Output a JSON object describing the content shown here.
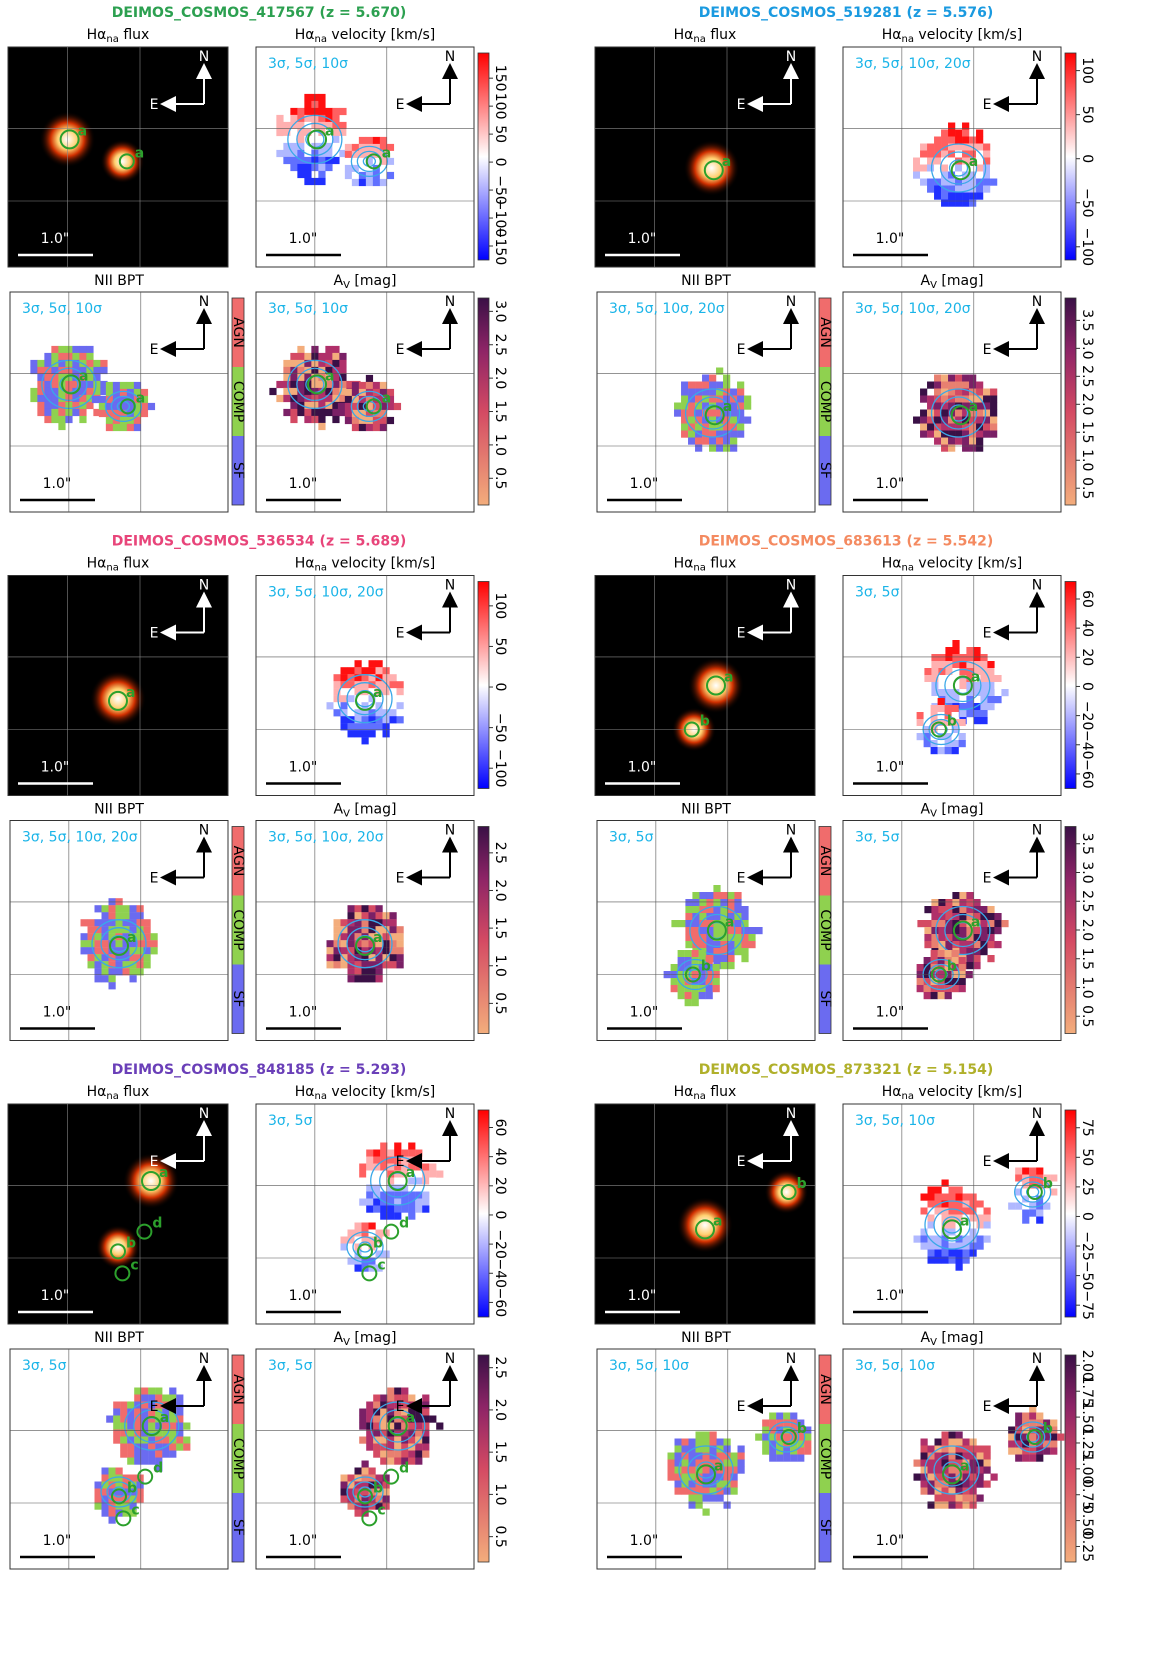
{
  "panel_titles": {
    "flux": {
      "main": "Hα",
      "sub": "na",
      "rest": " flux"
    },
    "velocity": {
      "main": "Hα",
      "sub": "na",
      "rest": " velocity [km/s]"
    },
    "bpt": "NII BPT",
    "av": {
      "main": "A",
      "sub": "V",
      "rest": " [mag]"
    }
  },
  "bpt_classes": [
    "AGN",
    "COMP",
    "SF"
  ],
  "compass": {
    "north": "N",
    "east": "E"
  },
  "scale_label": "1.0\"",
  "galaxies": [
    {
      "title": "DEIMOS_COSMOS_417567 (z = 5.670)",
      "color": "#2ca050",
      "contours": "3σ, 5σ, 10σ",
      "markers": [
        "a"
      ],
      "velocity_lim": [
        -175,
        195
      ],
      "velocity_ticks": [
        150,
        100,
        50,
        0,
        {
          "value": -50,
          "label": "−50"
        },
        {
          "value": -100,
          "label": "−100"
        },
        {
          "value": -150,
          "label": "−150"
        }
      ],
      "av_lim": [
        0.1,
        3.2
      ],
      "av_ticks": [
        {
          "value": 3,
          "label": "3.0"
        },
        {
          "value": 2.5,
          "label": "2.5"
        },
        {
          "value": 2,
          "label": "2.0"
        },
        {
          "value": 1.5,
          "label": "1.5"
        },
        {
          "value": 1,
          "label": "1.0"
        },
        {
          "value": 0.5,
          "label": "0.5"
        }
      ]
    },
    {
      "title": "DEIMOS_COSMOS_519281 (z = 5.576)",
      "color": "#1a9ae0",
      "contours": "3σ, 5σ, 10σ, 20σ",
      "markers": [
        "a"
      ],
      "velocity_lim": [
        -115,
        120
      ],
      "velocity_ticks": [
        100,
        50,
        0,
        {
          "value": -50,
          "label": "−50"
        },
        {
          "value": -100,
          "label": "−100"
        }
      ],
      "av_lim": [
        0.2,
        3.9
      ],
      "av_ticks": [
        {
          "value": 3.5,
          "label": "3.5"
        },
        {
          "value": 3,
          "label": "3.0"
        },
        {
          "value": 2.5,
          "label": "2.5"
        },
        {
          "value": 2,
          "label": "2.0"
        },
        {
          "value": 1.5,
          "label": "1.5"
        },
        {
          "value": 1,
          "label": "1.0"
        },
        {
          "value": 0.5,
          "label": "0.5"
        }
      ]
    },
    {
      "title": "DEIMOS_COSMOS_536534 (z = 5.689)",
      "color": "#e8457a",
      "contours": "3σ, 5σ, 10σ, 20σ",
      "markers": [
        "a"
      ],
      "velocity_lim": [
        -125,
        130
      ],
      "velocity_ticks": [
        100,
        50,
        0,
        {
          "value": -50,
          "label": "−50"
        },
        {
          "value": -100,
          "label": "−100"
        }
      ],
      "av_lim": [
        0.1,
        2.85
      ],
      "av_ticks": [
        {
          "value": 2.5,
          "label": "2.5"
        },
        {
          "value": 2,
          "label": "2.0"
        },
        {
          "value": 1.5,
          "label": "1.5"
        },
        {
          "value": 1,
          "label": "1.0"
        },
        {
          "value": 0.5,
          "label": "0.5"
        }
      ]
    },
    {
      "title": "DEIMOS_COSMOS_683613 (z = 5.542)",
      "color": "#f48a60",
      "contours": "3σ, 5σ",
      "markers": [
        "a",
        "b"
      ],
      "velocity_lim": [
        -70,
        72
      ],
      "velocity_ticks": [
        60,
        40,
        20,
        0,
        {
          "value": -20,
          "label": "−20"
        },
        {
          "value": -40,
          "label": "−40"
        },
        {
          "value": -60,
          "label": "−60"
        }
      ],
      "av_lim": [
        0.2,
        3.8
      ],
      "av_ticks": [
        {
          "value": 3.5,
          "label": "3.5"
        },
        {
          "value": 3,
          "label": "3.0"
        },
        {
          "value": 2.5,
          "label": "2.5"
        },
        {
          "value": 2,
          "label": "2.0"
        },
        {
          "value": 1.5,
          "label": "1.5"
        },
        {
          "value": 1,
          "label": "1.0"
        },
        {
          "value": 0.5,
          "label": "0.5"
        }
      ]
    },
    {
      "title": "DEIMOS_COSMOS_848185 (z = 5.293)",
      "color": "#6a3fb8",
      "contours": "3σ, 5σ",
      "markers": [
        "a",
        "b",
        "c",
        "d"
      ],
      "velocity_lim": [
        -70,
        72
      ],
      "velocity_ticks": [
        60,
        40,
        20,
        0,
        {
          "value": -20,
          "label": "−20"
        },
        {
          "value": -40,
          "label": "−40"
        },
        {
          "value": -60,
          "label": "−60"
        }
      ],
      "av_lim": [
        0.2,
        2.65
      ],
      "av_ticks": [
        {
          "value": 2.5,
          "label": "2.5"
        },
        {
          "value": 2,
          "label": "2.0"
        },
        {
          "value": 1.5,
          "label": "1.5"
        },
        {
          "value": 1,
          "label": "1.0"
        },
        {
          "value": 0.5,
          "label": "0.5"
        }
      ]
    },
    {
      "title": "DEIMOS_COSMOS_873321 (z = 5.154)",
      "color": "#b0b02a",
      "contours": "3σ, 5σ, 10σ",
      "markers": [
        "a",
        "b"
      ],
      "velocity_lim": [
        -85,
        90
      ],
      "velocity_ticks": [
        75,
        50,
        25,
        0,
        {
          "value": -25,
          "label": "−25"
        },
        {
          "value": -50,
          "label": "−50"
        },
        {
          "value": -75,
          "label": "−75"
        }
      ],
      "av_lim": [
        0.1,
        2.1
      ],
      "av_ticks": [
        {
          "value": 2,
          "label": "2.00"
        },
        {
          "value": 1.75,
          "label": "1.75"
        },
        {
          "value": 1.5,
          "label": "1.50"
        },
        {
          "value": 1.25,
          "label": "1.25"
        },
        {
          "value": 1,
          "label": "1.00"
        },
        {
          "value": 0.75,
          "label": "0.75"
        },
        {
          "value": 0.5,
          "label": "0.50"
        },
        {
          "value": 0.25,
          "label": "0.25"
        }
      ]
    }
  ]
}
